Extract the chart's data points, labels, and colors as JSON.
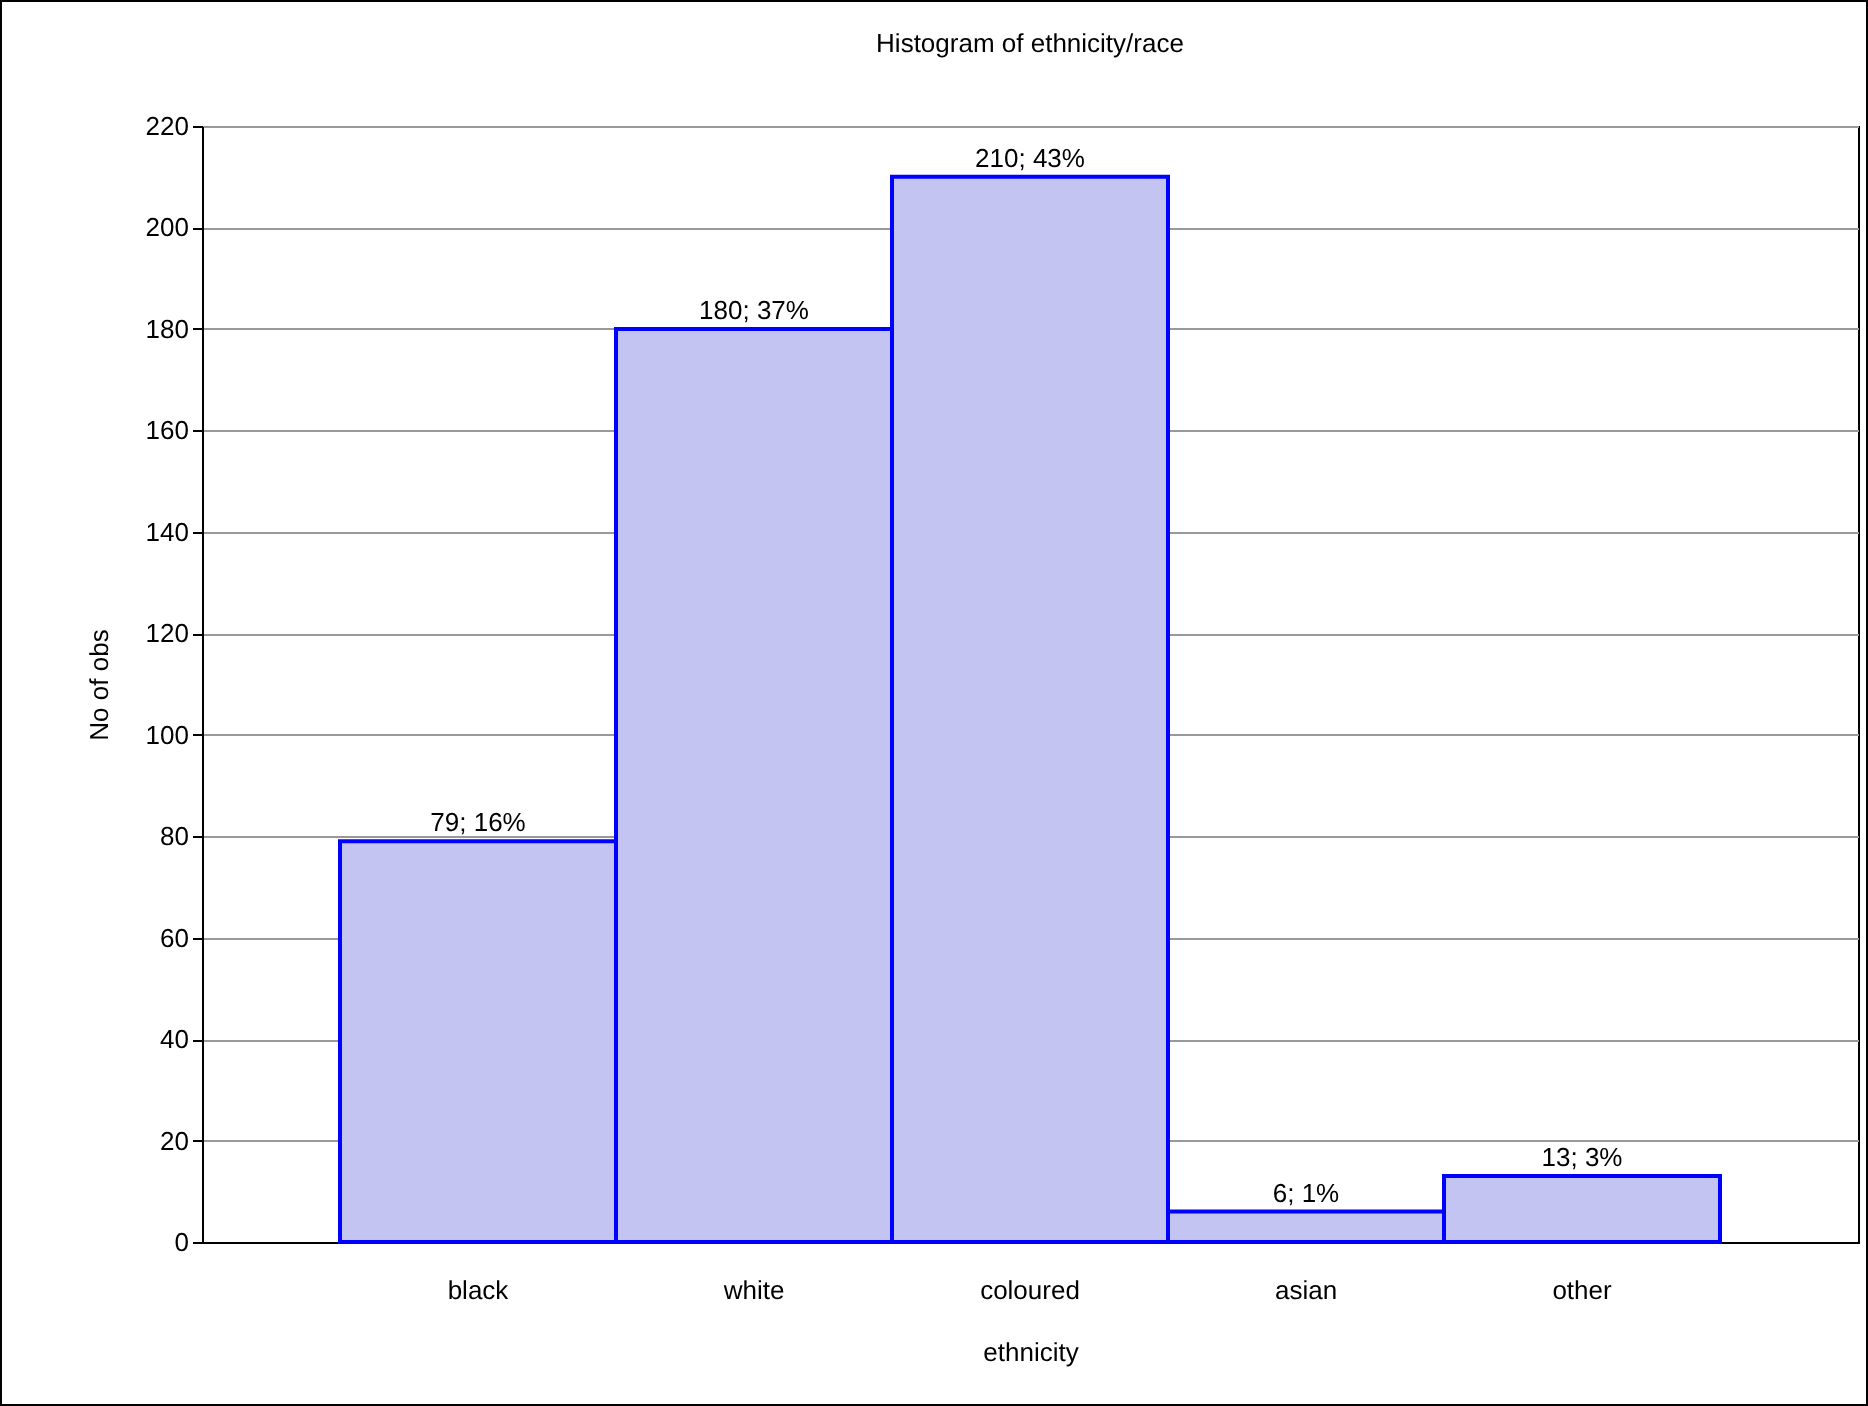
{
  "chart_data": {
    "type": "bar",
    "title": "Histogram of ethnicity/race",
    "xlabel": "ethnicity",
    "ylabel": "No of obs",
    "categories": [
      "black",
      "white",
      "coloured",
      "asian",
      "other"
    ],
    "values": [
      79,
      180,
      210,
      6,
      13
    ],
    "value_labels": [
      "79; 16%",
      "180; 37%",
      "210; 43%",
      "6; 1%",
      "13; 3%"
    ],
    "color": "#c4c4f2",
    "ylim": [
      0,
      220
    ],
    "yticks": [
      0,
      20,
      40,
      60,
      80,
      100,
      120,
      140,
      160,
      180,
      200,
      220
    ],
    "grid": "y"
  }
}
